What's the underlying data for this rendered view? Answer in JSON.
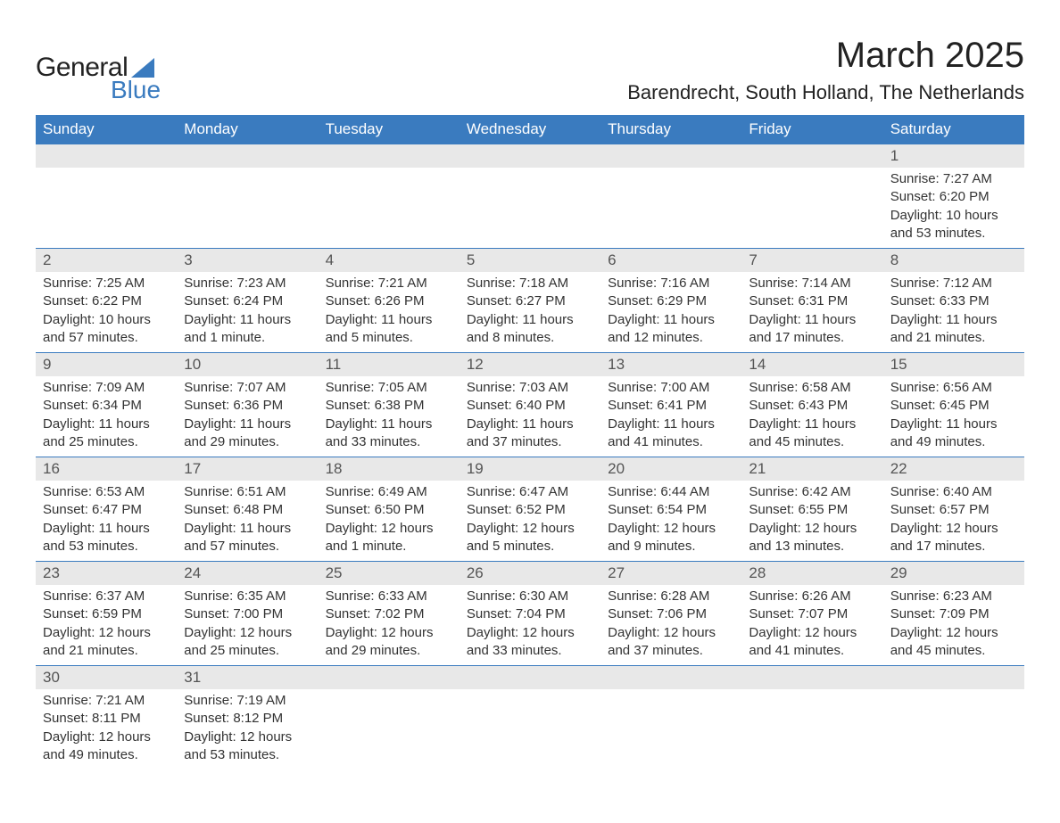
{
  "logo": {
    "text_general": "General",
    "text_blue": "Blue",
    "triangle_color": "#3a7bbf"
  },
  "title": "March 2025",
  "location": "Barendrecht, South Holland, The Netherlands",
  "header_bg": "#3a7bbf",
  "row_border": "#3a7bbf",
  "daynum_bg": "#e8e8e8",
  "columns": [
    "Sunday",
    "Monday",
    "Tuesday",
    "Wednesday",
    "Thursday",
    "Friday",
    "Saturday"
  ],
  "weeks": [
    [
      null,
      null,
      null,
      null,
      null,
      null,
      {
        "n": "1",
        "sunrise": "7:27 AM",
        "sunset": "6:20 PM",
        "daylight": "10 hours and 53 minutes."
      }
    ],
    [
      {
        "n": "2",
        "sunrise": "7:25 AM",
        "sunset": "6:22 PM",
        "daylight": "10 hours and 57 minutes."
      },
      {
        "n": "3",
        "sunrise": "7:23 AM",
        "sunset": "6:24 PM",
        "daylight": "11 hours and 1 minute."
      },
      {
        "n": "4",
        "sunrise": "7:21 AM",
        "sunset": "6:26 PM",
        "daylight": "11 hours and 5 minutes."
      },
      {
        "n": "5",
        "sunrise": "7:18 AM",
        "sunset": "6:27 PM",
        "daylight": "11 hours and 8 minutes."
      },
      {
        "n": "6",
        "sunrise": "7:16 AM",
        "sunset": "6:29 PM",
        "daylight": "11 hours and 12 minutes."
      },
      {
        "n": "7",
        "sunrise": "7:14 AM",
        "sunset": "6:31 PM",
        "daylight": "11 hours and 17 minutes."
      },
      {
        "n": "8",
        "sunrise": "7:12 AM",
        "sunset": "6:33 PM",
        "daylight": "11 hours and 21 minutes."
      }
    ],
    [
      {
        "n": "9",
        "sunrise": "7:09 AM",
        "sunset": "6:34 PM",
        "daylight": "11 hours and 25 minutes."
      },
      {
        "n": "10",
        "sunrise": "7:07 AM",
        "sunset": "6:36 PM",
        "daylight": "11 hours and 29 minutes."
      },
      {
        "n": "11",
        "sunrise": "7:05 AM",
        "sunset": "6:38 PM",
        "daylight": "11 hours and 33 minutes."
      },
      {
        "n": "12",
        "sunrise": "7:03 AM",
        "sunset": "6:40 PM",
        "daylight": "11 hours and 37 minutes."
      },
      {
        "n": "13",
        "sunrise": "7:00 AM",
        "sunset": "6:41 PM",
        "daylight": "11 hours and 41 minutes."
      },
      {
        "n": "14",
        "sunrise": "6:58 AM",
        "sunset": "6:43 PM",
        "daylight": "11 hours and 45 minutes."
      },
      {
        "n": "15",
        "sunrise": "6:56 AM",
        "sunset": "6:45 PM",
        "daylight": "11 hours and 49 minutes."
      }
    ],
    [
      {
        "n": "16",
        "sunrise": "6:53 AM",
        "sunset": "6:47 PM",
        "daylight": "11 hours and 53 minutes."
      },
      {
        "n": "17",
        "sunrise": "6:51 AM",
        "sunset": "6:48 PM",
        "daylight": "11 hours and 57 minutes."
      },
      {
        "n": "18",
        "sunrise": "6:49 AM",
        "sunset": "6:50 PM",
        "daylight": "12 hours and 1 minute."
      },
      {
        "n": "19",
        "sunrise": "6:47 AM",
        "sunset": "6:52 PM",
        "daylight": "12 hours and 5 minutes."
      },
      {
        "n": "20",
        "sunrise": "6:44 AM",
        "sunset": "6:54 PM",
        "daylight": "12 hours and 9 minutes."
      },
      {
        "n": "21",
        "sunrise": "6:42 AM",
        "sunset": "6:55 PM",
        "daylight": "12 hours and 13 minutes."
      },
      {
        "n": "22",
        "sunrise": "6:40 AM",
        "sunset": "6:57 PM",
        "daylight": "12 hours and 17 minutes."
      }
    ],
    [
      {
        "n": "23",
        "sunrise": "6:37 AM",
        "sunset": "6:59 PM",
        "daylight": "12 hours and 21 minutes."
      },
      {
        "n": "24",
        "sunrise": "6:35 AM",
        "sunset": "7:00 PM",
        "daylight": "12 hours and 25 minutes."
      },
      {
        "n": "25",
        "sunrise": "6:33 AM",
        "sunset": "7:02 PM",
        "daylight": "12 hours and 29 minutes."
      },
      {
        "n": "26",
        "sunrise": "6:30 AM",
        "sunset": "7:04 PM",
        "daylight": "12 hours and 33 minutes."
      },
      {
        "n": "27",
        "sunrise": "6:28 AM",
        "sunset": "7:06 PM",
        "daylight": "12 hours and 37 minutes."
      },
      {
        "n": "28",
        "sunrise": "6:26 AM",
        "sunset": "7:07 PM",
        "daylight": "12 hours and 41 minutes."
      },
      {
        "n": "29",
        "sunrise": "6:23 AM",
        "sunset": "7:09 PM",
        "daylight": "12 hours and 45 minutes."
      }
    ],
    [
      {
        "n": "30",
        "sunrise": "7:21 AM",
        "sunset": "8:11 PM",
        "daylight": "12 hours and 49 minutes."
      },
      {
        "n": "31",
        "sunrise": "7:19 AM",
        "sunset": "8:12 PM",
        "daylight": "12 hours and 53 minutes."
      },
      null,
      null,
      null,
      null,
      null
    ]
  ],
  "labels": {
    "sunrise": "Sunrise: ",
    "sunset": "Sunset: ",
    "daylight": "Daylight: "
  }
}
